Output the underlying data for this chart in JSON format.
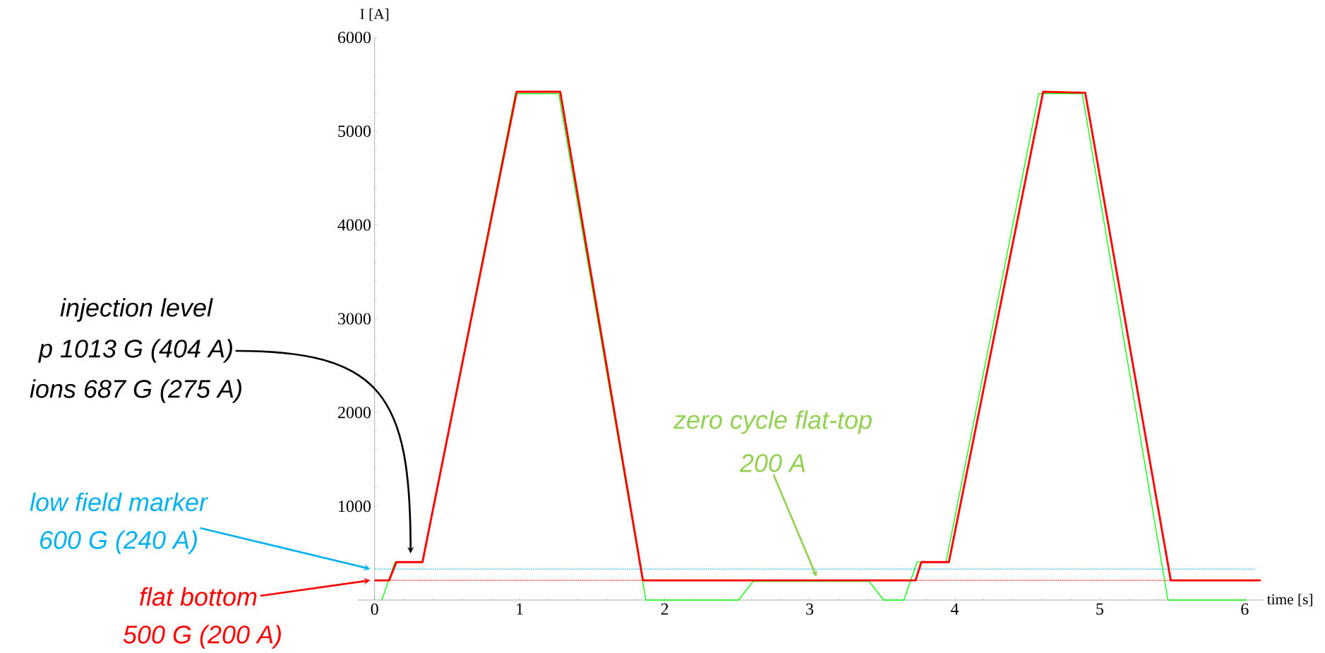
{
  "chart_data": {
    "type": "line",
    "xlabel": "time [s]",
    "ylabel": "I [A]",
    "xlim": [
      -0.12,
      6.13
    ],
    "ylim": [
      0,
      6000
    ],
    "xticks": [
      0,
      1,
      2,
      3,
      4,
      5,
      6
    ],
    "yticks": [
      1000,
      2000,
      3000,
      4000,
      5000,
      6000
    ],
    "series": [
      {
        "color": "#00ff00",
        "x": [
          0.05,
          0.14,
          0.33,
          0.97,
          1.27,
          1.87,
          2.51,
          2.61,
          3.41,
          3.51,
          3.65,
          3.74,
          3.94,
          4.58,
          4.88,
          5.47,
          6.01
        ],
        "values": [
          0,
          405,
          405,
          5400,
          5400,
          0,
          0,
          200,
          200,
          0,
          0,
          405,
          405,
          5400,
          5400,
          0,
          0
        ]
      },
      {
        "color": "#ff0000",
        "x": [
          0,
          0.1,
          0.15,
          0.33,
          0.98,
          1.28,
          1.85,
          3.73,
          3.77,
          3.96,
          4.61,
          4.9,
          5.49,
          6.11
        ],
        "values": [
          210,
          210,
          405,
          405,
          5420,
          5420,
          210,
          210,
          405,
          405,
          5420,
          5410,
          210,
          210
        ]
      }
    ],
    "ref_lines": [
      {
        "axis": "y",
        "value": 330,
        "color": "#00b0f0",
        "line_style": "dotted"
      },
      {
        "axis": "y",
        "value": 210,
        "color": "#ff0000",
        "line_style": "dotted"
      }
    ],
    "annotations": [
      "injection level",
      "p 1013 G (404 A)",
      "ions 687 G (275 A)",
      "low field marker",
      "600 G (240 A)",
      "flat bottom",
      "500 G (200 A)",
      "zero cycle flat-top",
      "200 A"
    ]
  }
}
